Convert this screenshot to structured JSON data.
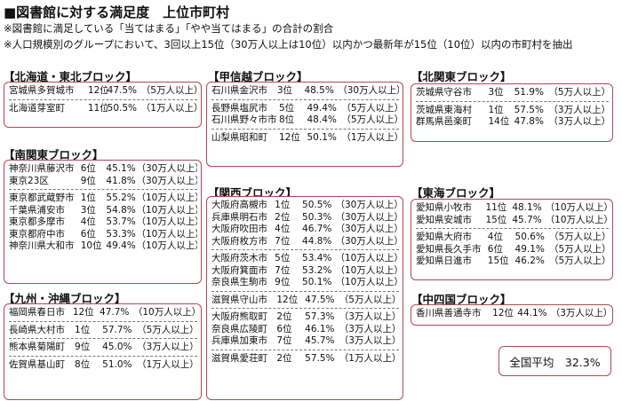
{
  "title": "■図書館に対する満足度　上位市町村",
  "notes": [
    "※図書館に満足している「当てはまる」「やや当てはまる」の合計の割合",
    "※人口規模別のグループにおいて、3回以上15位（30万人以上は10位）以内かつ最新年が15位（10位）以内の市町村を抽出"
  ],
  "blocks": [
    {
      "label": "【北海道・東北ブロック】",
      "groups": [
        [
          {
            "city": "宮城県多賀城市",
            "rank": "12位",
            "pct": "47.5%",
            "size": "（5万人以上）"
          }
        ],
        [
          {
            "city": "北海道芽室町",
            "rank": "11位",
            "pct": "50.5%",
            "size": "（1万人以上）"
          }
        ]
      ]
    },
    {
      "label": "【南関東ブロック】",
      "groups": [
        [
          {
            "city": "神奈川県藤沢市",
            "rank": "6位",
            "pct": "45.1%",
            "size": "（30万人以上）"
          },
          {
            "city": "東京23区",
            "rank": "9位",
            "pct": "41.8%",
            "size": "（30万人以上）"
          }
        ],
        [
          {
            "city": "東京都武蔵野市",
            "rank": "1位",
            "pct": "55.2%",
            "size": "（10万人以上）"
          },
          {
            "city": "千葉県浦安市",
            "rank": "3位",
            "pct": "54.8%",
            "size": "（10万人以上）"
          },
          {
            "city": "東京都多摩市",
            "rank": "4位",
            "pct": "53.7%",
            "size": "（10万人以上）"
          },
          {
            "city": "東京都府中市",
            "rank": "6位",
            "pct": "53.3%",
            "size": "（10万人以上）"
          },
          {
            "city": "神奈川県大和市",
            "rank": "10位",
            "pct": "49.4%",
            "size": "（10万人以上）"
          }
        ]
      ]
    },
    {
      "label": "【九州・沖縄ブロック】",
      "groups": [
        [
          {
            "city": "福岡県春日市",
            "rank": "12位",
            "pct": "47.7%",
            "size": "（10万人以上）"
          }
        ],
        [
          {
            "city": "長崎県大村市",
            "rank": "1位",
            "pct": "57.7%",
            "size": "（5万人以上）"
          }
        ],
        [
          {
            "city": "熊本県菊陽町",
            "rank": "9位",
            "pct": "45.0%",
            "size": "（3万人以上）"
          }
        ],
        [
          {
            "city": "佐賀県基山町",
            "rank": "8位",
            "pct": "51.0%",
            "size": "（1万人以上）"
          }
        ]
      ]
    },
    {
      "label": "【甲信越ブロック】",
      "groups": [
        [
          {
            "city": "石川県金沢市",
            "rank": "3位",
            "pct": "48.5%",
            "size": "（30万人以上）"
          }
        ],
        [
          {
            "city": "長野県塩尻市",
            "rank": "5位",
            "pct": "49.4%",
            "size": "（5万人以上）"
          },
          {
            "city": "石川県野々市市",
            "rank": "8位",
            "pct": "48.4%",
            "size": "（5万人以上）"
          }
        ],
        [
          {
            "city": "山梨県昭和町",
            "rank": "12位",
            "pct": "50.1%",
            "size": "（1万人以上）"
          }
        ]
      ]
    },
    {
      "label": "【関西ブロック】",
      "groups": [
        [
          {
            "city": "大阪府高槻市",
            "rank": "1位",
            "pct": "50.5%",
            "size": "（30万人以上）"
          },
          {
            "city": "兵庫県明石市",
            "rank": "2位",
            "pct": "50.3%",
            "size": "（30万人以上）"
          },
          {
            "city": "大阪府吹田市",
            "rank": "4位",
            "pct": "46.7%",
            "size": "（30万人以上）"
          },
          {
            "city": "大阪府枚方市",
            "rank": "7位",
            "pct": "44.8%",
            "size": "（30万人以上）"
          }
        ],
        [
          {
            "city": "大阪府茨木市",
            "rank": "5位",
            "pct": "53.4%",
            "size": "（10万人以上）"
          },
          {
            "city": "大阪府箕面市",
            "rank": "7位",
            "pct": "53.2%",
            "size": "（10万人以上）"
          },
          {
            "city": "奈良県生駒市",
            "rank": "9位",
            "pct": "50.1%",
            "size": "（10万人以上）"
          }
        ],
        [
          {
            "city": "滋賀県守山市",
            "rank": "12位",
            "pct": "47.5%",
            "size": "（5万人以上）"
          }
        ],
        [
          {
            "city": "大阪府熊取町",
            "rank": "2位",
            "pct": "57.3%",
            "size": "（3万人以上）"
          },
          {
            "city": "奈良県広陵町",
            "rank": "6位",
            "pct": "46.1%",
            "size": "（3万人以上）"
          },
          {
            "city": "兵庫県加東市",
            "rank": "7位",
            "pct": "45.7%",
            "size": "（3万人以上）"
          }
        ],
        [
          {
            "city": "滋賀県愛荘町",
            "rank": "2位",
            "pct": "57.5%",
            "size": "（1万人以上）"
          }
        ]
      ]
    },
    {
      "label": "【北関東ブロック】",
      "groups": [
        [
          {
            "city": "茨城県守谷市",
            "rank": "3位",
            "pct": "51.9%",
            "size": "（5万人以上）"
          }
        ],
        [
          {
            "city": "茨城県東海村",
            "rank": "1位",
            "pct": "57.5%",
            "size": "（3万人以上）"
          },
          {
            "city": "群馬県邑楽町",
            "rank": "14位",
            "pct": "47.8%",
            "size": "（3万人以上）"
          }
        ]
      ]
    },
    {
      "label": "【東海ブロック】",
      "groups": [
        [
          {
            "city": "愛知県小牧市",
            "rank": "11位",
            "pct": "48.1%",
            "size": "（10万人以上）"
          },
          {
            "city": "愛知県安城市",
            "rank": "15位",
            "pct": "45.7%",
            "size": "（10万人以上）"
          }
        ],
        [
          {
            "city": "愛知県大府市",
            "rank": "4位",
            "pct": "50.6%",
            "size": "（5万人以上）"
          },
          {
            "city": "愛知県長久手市",
            "rank": "6位",
            "pct": "49.1%",
            "size": "（5万人以上）"
          },
          {
            "city": "愛知県日進市",
            "rank": "15位",
            "pct": "46.2%",
            "size": "（5万人以上）"
          }
        ]
      ]
    },
    {
      "label": "【中四国ブロック】",
      "groups": [
        [
          {
            "city": "香川県善通寺市",
            "rank": "12位",
            "pct": "44.1%",
            "size": "（3万人以上）"
          }
        ]
      ]
    }
  ],
  "average": "全国平均　32.3%"
}
